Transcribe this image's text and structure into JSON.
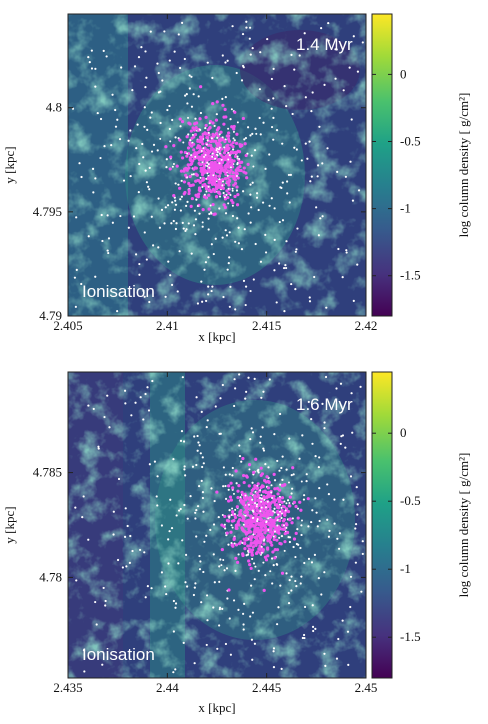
{
  "chart_data": [
    {
      "type": "heatmap",
      "title": "",
      "xlabel": "x [kpc]",
      "ylabel": "y [kpc]",
      "xlim": [
        2.405,
        2.42
      ],
      "ylim": [
        4.79,
        4.8045
      ],
      "xticks": [
        2.405,
        2.41,
        2.415,
        2.42
      ],
      "xtick_labels": [
        "2.405",
        "2.41",
        "2.415",
        "2.42"
      ],
      "yticks": [
        4.79,
        4.795,
        4.8
      ],
      "ytick_labels": [
        "4.79",
        "4.795",
        "4.8"
      ],
      "time_label": "1.4 Myr",
      "run_label": "Ionisation",
      "colorbar": {
        "label": "log column density [ g/cm²]",
        "range": [
          -1.8,
          0.45
        ],
        "ticks": [
          0,
          -0.5,
          -1,
          -1.5
        ],
        "tick_labels": [
          "0",
          "-0.5",
          "-1",
          "-1.5"
        ],
        "colormap": "viridis"
      },
      "cluster_center": [
        2.4123,
        4.7974
      ],
      "colors": {
        "young_stars": "#ee55ee",
        "stars": "#ffffff"
      }
    },
    {
      "type": "heatmap",
      "title": "",
      "xlabel": "x [kpc]",
      "ylabel": "y [kpc]",
      "xlim": [
        2.435,
        2.45
      ],
      "ylim": [
        4.7752,
        4.7898
      ],
      "xticks": [
        2.435,
        2.44,
        2.445,
        2.45
      ],
      "xtick_labels": [
        "2.435",
        "2.44",
        "2.445",
        "2.45"
      ],
      "yticks": [
        4.78,
        4.785
      ],
      "ytick_labels": [
        "4.78",
        "4.785"
      ],
      "time_label": "1.6 Myr",
      "run_label": "Ionisation",
      "colorbar": {
        "label": "log column density [ g/cm²]",
        "range": [
          -1.8,
          0.45
        ],
        "ticks": [
          0,
          -0.5,
          -1,
          -1.5
        ],
        "tick_labels": [
          "0",
          "-0.5",
          "-1",
          "-1.5"
        ],
        "colormap": "viridis"
      },
      "cluster_center": [
        2.4446,
        4.7828
      ],
      "colors": {
        "young_stars": "#ee55ee",
        "stars": "#ffffff"
      }
    }
  ]
}
